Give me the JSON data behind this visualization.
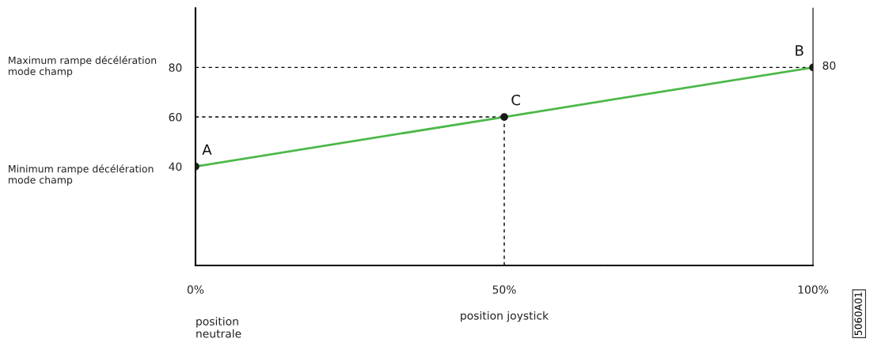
{
  "chart_data": {
    "type": "line",
    "xlabel": "position joystick",
    "x": [
      0,
      50,
      100
    ],
    "series": [
      {
        "color": "#4cb848",
        "values": [
          40,
          60,
          80
        ]
      }
    ],
    "marker": "circle",
    "line_style": "solid",
    "grid": false,
    "xlim": [
      0,
      100
    ],
    "xticks": [
      {
        "value": 0,
        "label": "0%"
      },
      {
        "value": 50,
        "label": "50%"
      },
      {
        "value": 100,
        "label": "100%"
      }
    ],
    "ylim": [
      0,
      104
    ],
    "yticks": [
      40,
      60,
      80
    ],
    "ref_lines": [
      {
        "axis": "y",
        "value": 80,
        "color": "#000000",
        "line_style": "dashed"
      },
      {
        "axis": "y",
        "value": 60,
        "color": "#000000",
        "line_style": "dashed"
      },
      {
        "axis": "x",
        "value": 50,
        "color": "#000000",
        "line_style": "dashed"
      }
    ],
    "annotations": [
      {
        "text": "A",
        "x": 0,
        "y": 40
      },
      {
        "text": "C",
        "x": 50,
        "y": 60
      },
      {
        "text": "B",
        "x": 100,
        "y": 80
      },
      "Maximum rampe décélération\nmode champ",
      "Minimum rampe décélération\nmode champ",
      "position\nneutrale",
      "80",
      "5060A01"
    ]
  }
}
